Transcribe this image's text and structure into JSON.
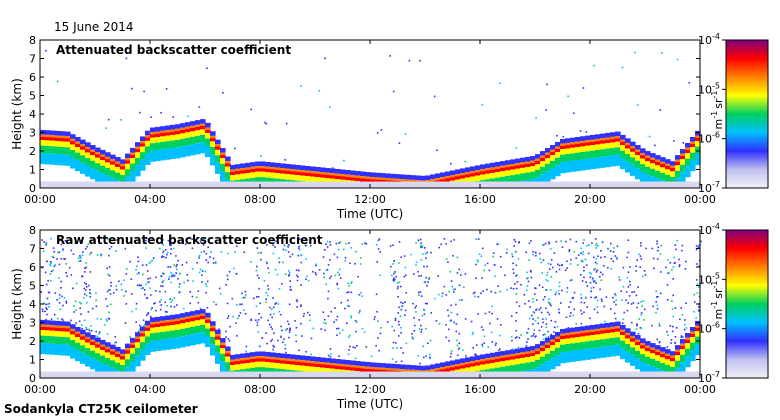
{
  "header": {
    "date": "15 June 2014"
  },
  "footer": {
    "station": "Sodankyla CT25K ceilometer"
  },
  "chart_data": [
    {
      "type": "heatmap",
      "title": "Attenuated backscatter coefficient",
      "xlabel": "Time (UTC)",
      "ylabel": "Height (km)",
      "xticks": [
        "00:00",
        "04:00",
        "08:00",
        "12:00",
        "16:00",
        "20:00",
        "00:00"
      ],
      "yticks": [
        "0",
        "1",
        "2",
        "3",
        "4",
        "5",
        "6",
        "7",
        "8"
      ],
      "ylim": [
        0,
        8
      ],
      "colorbar": {
        "scale": "log",
        "ticks": [
          "10-7",
          "10-6",
          "10-5",
          "10-4"
        ],
        "unit": "m-1 sr-1",
        "colors": [
          "#ffffff",
          "#3030ff",
          "#00c0ff",
          "#00d060",
          "#ffff00",
          "#ff8000",
          "#ff0000",
          "#800080"
        ]
      },
      "layer_height_km": [
        [
          0,
          2.9
        ],
        [
          1,
          2.8
        ],
        [
          2,
          2.0
        ],
        [
          3,
          1.3
        ],
        [
          4,
          3.0
        ],
        [
          5,
          3.2
        ],
        [
          6,
          3.5
        ],
        [
          7,
          1.0
        ],
        [
          8,
          1.2
        ],
        [
          12,
          0.6
        ],
        [
          14,
          0.4
        ],
        [
          16,
          1.0
        ],
        [
          18,
          1.5
        ],
        [
          19,
          2.4
        ],
        [
          20,
          2.6
        ],
        [
          21,
          2.8
        ],
        [
          22,
          1.8
        ],
        [
          23,
          1.2
        ],
        [
          24,
          3.0
        ]
      ]
    },
    {
      "type": "heatmap",
      "title": "Raw attenuated backscatter coefficient",
      "xlabel": "Time (UTC)",
      "ylabel": "Height (km)",
      "xticks": [
        "00:00",
        "04:00",
        "08:00",
        "12:00",
        "16:00",
        "20:00",
        "00:00"
      ],
      "yticks": [
        "0",
        "1",
        "2",
        "3",
        "4",
        "5",
        "6",
        "7",
        "8"
      ],
      "ylim": [
        0,
        8
      ],
      "colorbar": {
        "scale": "log",
        "ticks": [
          "10-7",
          "10-6",
          "10-5",
          "10-4"
        ],
        "unit": "m-1 sr-1",
        "colors": [
          "#ffffff",
          "#3030ff",
          "#00c0ff",
          "#00d060",
          "#ffff00",
          "#ff8000",
          "#ff0000",
          "#800080"
        ]
      },
      "layer_height_km": [
        [
          0,
          2.9
        ],
        [
          1,
          2.8
        ],
        [
          2,
          2.0
        ],
        [
          3,
          1.3
        ],
        [
          4,
          3.0
        ],
        [
          5,
          3.2
        ],
        [
          6,
          3.5
        ],
        [
          7,
          1.0
        ],
        [
          8,
          1.2
        ],
        [
          12,
          0.6
        ],
        [
          14,
          0.4
        ],
        [
          16,
          1.0
        ],
        [
          18,
          1.5
        ],
        [
          19,
          2.4
        ],
        [
          20,
          2.6
        ],
        [
          21,
          2.8
        ],
        [
          22,
          1.8
        ],
        [
          23,
          1.2
        ],
        [
          24,
          3.0
        ]
      ]
    }
  ]
}
